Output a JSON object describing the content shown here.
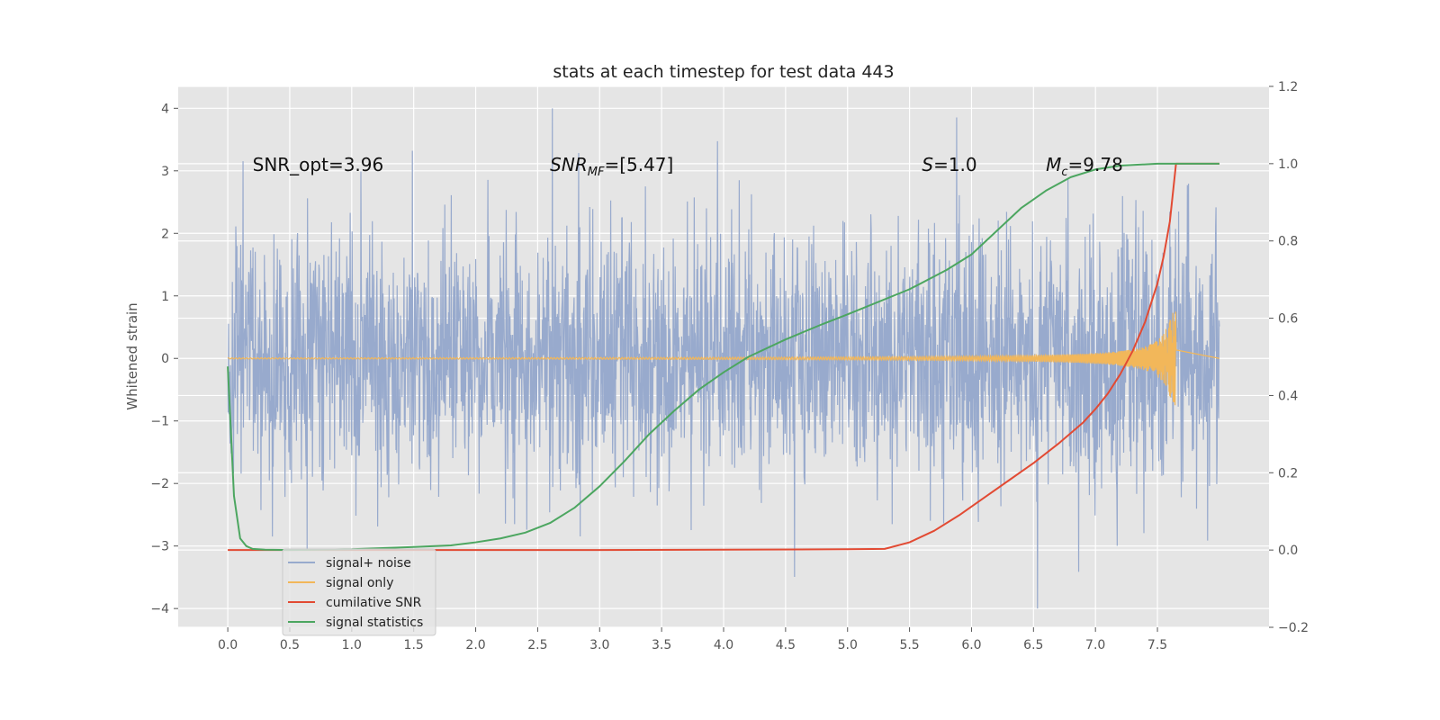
{
  "chart_data": {
    "type": "line",
    "title": "stats at each timestep for test data 443",
    "ylabel": "Whitened strain",
    "xlabel": "",
    "xlim": [
      -0.4,
      8.4
    ],
    "ylim": [
      -4.3,
      4.35
    ],
    "y2lim": [
      -0.2,
      1.2
    ],
    "grid": true,
    "x_ticks": [
      "0.0",
      "0.5",
      "1.0",
      "1.5",
      "2.0",
      "2.5",
      "3.0",
      "3.5",
      "4.0",
      "4.5",
      "5.0",
      "5.5",
      "6.0",
      "6.5",
      "7.0",
      "7.5"
    ],
    "y_ticks": [
      "4",
      "3",
      "2",
      "1",
      "0",
      "−1",
      "−2",
      "−3",
      "−4"
    ],
    "y2_ticks": [
      "1.2",
      "1.0",
      "0.8",
      "0.6",
      "0.4",
      "0.2",
      "0.0",
      "−0.2"
    ],
    "annotations": [
      {
        "label": "SNR_opt=3.96",
        "x": 0.2,
        "y": 3.1
      },
      {
        "label": "SNRMF=[5.47]",
        "x": 2.6,
        "y": 3.1,
        "base": "SNR",
        "sub": "MF",
        "rest": "=[5.47]"
      },
      {
        "label": "S=1.0",
        "x": 5.6,
        "y": 3.1
      },
      {
        "label": "Mc=9.78",
        "x": 6.6,
        "y": 3.1
      }
    ],
    "legend": {
      "placement": "lower-left",
      "entries": [
        {
          "label": "signal+ noise",
          "color": "#98aacd"
        },
        {
          "label": "signal only",
          "color": "#f2b75a"
        },
        {
          "label": "cumilative SNR",
          "color": "#e24a33"
        },
        {
          "label": "signal statistics",
          "color": "#4ca660"
        }
      ]
    },
    "series": [
      {
        "name": "signal+ noise",
        "axis": "left",
        "color": "#98aacd",
        "x_range": [
          0.0,
          8.0
        ],
        "amplitude_range": [
          -4.0,
          4.0
        ],
        "style": "dense noise"
      },
      {
        "name": "signal only",
        "axis": "left",
        "color": "#f2b75a",
        "x_range": [
          0.0,
          7.65
        ],
        "peak_amplitude": 0.75,
        "style": "chirp"
      },
      {
        "name": "cumilative SNR",
        "axis": "right",
        "color": "#e24a33",
        "x": [
          0.0,
          1.0,
          2.0,
          3.0,
          4.0,
          5.0,
          5.3,
          5.5,
          5.7,
          5.9,
          6.1,
          6.3,
          6.5,
          6.7,
          6.9,
          7.0,
          7.1,
          7.2,
          7.3,
          7.4,
          7.5,
          7.55,
          7.6,
          7.65,
          8.0
        ],
        "y": [
          0.0,
          0.0,
          0.0,
          0.0,
          0.001,
          0.002,
          0.003,
          0.02,
          0.05,
          0.09,
          0.135,
          0.18,
          0.225,
          0.275,
          0.33,
          0.365,
          0.405,
          0.455,
          0.515,
          0.59,
          0.69,
          0.76,
          0.85,
          1.0,
          1.0
        ]
      },
      {
        "name": "signal statistics",
        "axis": "right",
        "color": "#4ca660",
        "x": [
          0.0,
          0.05,
          0.1,
          0.15,
          0.2,
          0.3,
          0.5,
          1.0,
          1.5,
          1.8,
          2.0,
          2.2,
          2.4,
          2.6,
          2.8,
          3.0,
          3.2,
          3.4,
          3.6,
          3.8,
          4.0,
          4.2,
          4.5,
          4.8,
          5.0,
          5.5,
          5.8,
          6.0,
          6.2,
          6.4,
          6.6,
          6.8,
          7.0,
          7.2,
          7.5,
          8.0
        ],
        "y": [
          0.475,
          0.14,
          0.03,
          0.01,
          0.003,
          0.001,
          0.0,
          0.002,
          0.008,
          0.012,
          0.02,
          0.03,
          0.045,
          0.07,
          0.11,
          0.165,
          0.23,
          0.3,
          0.36,
          0.415,
          0.46,
          0.5,
          0.545,
          0.585,
          0.61,
          0.675,
          0.725,
          0.765,
          0.825,
          0.885,
          0.93,
          0.965,
          0.985,
          0.995,
          1.0,
          1.0
        ]
      }
    ]
  }
}
